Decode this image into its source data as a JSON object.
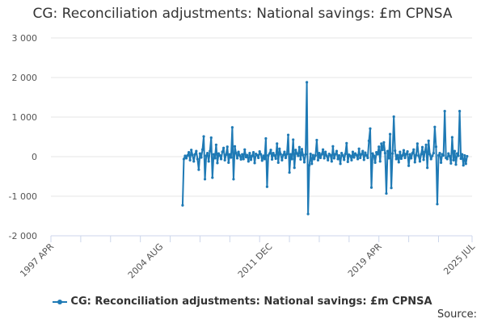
{
  "title": "CG: Reconciliation adjustments: National savings: £m CPNSA",
  "source_label": "Source:",
  "chart_data": {
    "type": "line",
    "title": "CG: Reconciliation adjustments: National savings: £m CPNSA",
    "xlabel": "",
    "ylabel": "",
    "x_tick_labels": [
      "1997 APR",
      "2004 AUG",
      "2011 DEC",
      "2019 APR",
      "2025 JUL"
    ],
    "y_tick_labels": [
      "3 000",
      "2 000",
      "1 000",
      "0",
      "-1 000",
      "-2 000"
    ],
    "y_ticks": [
      3000,
      2000,
      1000,
      0,
      -1000,
      -2000
    ],
    "ylim": [
      -2000,
      3000
    ],
    "xlim": [
      "1997-04",
      "2025-07"
    ],
    "grid": true,
    "legend_position": "bottom",
    "series": [
      {
        "name": "CG: Reconciliation adjustments: National savings: £m CPNSA",
        "color": "#1f7ab5",
        "data": [
          [
            "2006-02",
            -1230
          ],
          [
            "2006-03",
            -60
          ],
          [
            "2006-04",
            20
          ],
          [
            "2006-05",
            -40
          ],
          [
            "2006-06",
            30
          ],
          [
            "2006-07",
            110
          ],
          [
            "2006-08",
            -90
          ],
          [
            "2006-09",
            170
          ],
          [
            "2006-10",
            40
          ],
          [
            "2006-11",
            -120
          ],
          [
            "2006-12",
            60
          ],
          [
            "2007-01",
            140
          ],
          [
            "2007-02",
            -60
          ],
          [
            "2007-03",
            -330
          ],
          [
            "2007-04",
            80
          ],
          [
            "2007-05",
            -20
          ],
          [
            "2007-06",
            180
          ],
          [
            "2007-07",
            510
          ],
          [
            "2007-08",
            -570
          ],
          [
            "2007-09",
            20
          ],
          [
            "2007-10",
            90
          ],
          [
            "2007-11",
            -120
          ],
          [
            "2007-12",
            140
          ],
          [
            "2008-01",
            480
          ],
          [
            "2008-02",
            -530
          ],
          [
            "2008-03",
            60
          ],
          [
            "2008-04",
            -40
          ],
          [
            "2008-05",
            300
          ],
          [
            "2008-06",
            -160
          ],
          [
            "2008-07",
            80
          ],
          [
            "2008-08",
            30
          ],
          [
            "2008-09",
            -60
          ],
          [
            "2008-10",
            120
          ],
          [
            "2008-11",
            220
          ],
          [
            "2008-12",
            -90
          ],
          [
            "2009-01",
            50
          ],
          [
            "2009-02",
            250
          ],
          [
            "2009-03",
            -150
          ],
          [
            "2009-04",
            60
          ],
          [
            "2009-05",
            -20
          ],
          [
            "2009-06",
            740
          ],
          [
            "2009-07",
            -570
          ],
          [
            "2009-08",
            260
          ],
          [
            "2009-09",
            90
          ],
          [
            "2009-10",
            -40
          ],
          [
            "2009-11",
            120
          ],
          [
            "2009-12",
            30
          ],
          [
            "2010-01",
            -70
          ],
          [
            "2010-02",
            60
          ],
          [
            "2010-03",
            -60
          ],
          [
            "2010-04",
            180
          ],
          [
            "2010-05",
            -10
          ],
          [
            "2010-06",
            40
          ],
          [
            "2010-07",
            -120
          ],
          [
            "2010-08",
            90
          ],
          [
            "2010-09",
            -80
          ],
          [
            "2010-10",
            20
          ],
          [
            "2010-11",
            110
          ],
          [
            "2010-12",
            -160
          ],
          [
            "2011-01",
            70
          ],
          [
            "2011-02",
            40
          ],
          [
            "2011-03",
            -30
          ],
          [
            "2011-04",
            130
          ],
          [
            "2011-05",
            60
          ],
          [
            "2011-06",
            -100
          ],
          [
            "2011-07",
            20
          ],
          [
            "2011-08",
            -60
          ],
          [
            "2011-09",
            460
          ],
          [
            "2011-10",
            -760
          ],
          [
            "2011-11",
            30
          ],
          [
            "2011-12",
            80
          ],
          [
            "2012-01",
            170
          ],
          [
            "2012-02",
            -70
          ],
          [
            "2012-03",
            90
          ],
          [
            "2012-04",
            30
          ],
          [
            "2012-05",
            -50
          ],
          [
            "2012-06",
            330
          ],
          [
            "2012-07",
            -150
          ],
          [
            "2012-08",
            200
          ],
          [
            "2012-09",
            60
          ],
          [
            "2012-10",
            -90
          ],
          [
            "2012-11",
            40
          ],
          [
            "2012-12",
            120
          ],
          [
            "2013-01",
            -30
          ],
          [
            "2013-02",
            70
          ],
          [
            "2013-03",
            550
          ],
          [
            "2013-04",
            -400
          ],
          [
            "2013-05",
            60
          ],
          [
            "2013-06",
            -60
          ],
          [
            "2013-07",
            430
          ],
          [
            "2013-08",
            -280
          ],
          [
            "2013-09",
            170
          ],
          [
            "2013-10",
            80
          ],
          [
            "2013-11",
            20
          ],
          [
            "2013-12",
            240
          ],
          [
            "2014-01",
            -70
          ],
          [
            "2014-02",
            190
          ],
          [
            "2014-03",
            40
          ],
          [
            "2014-04",
            -140
          ],
          [
            "2014-05",
            60
          ],
          [
            "2014-06",
            1880
          ],
          [
            "2014-07",
            -1450
          ],
          [
            "2014-08",
            -220
          ],
          [
            "2014-09",
            70
          ],
          [
            "2014-10",
            -180
          ],
          [
            "2014-11",
            40
          ],
          [
            "2014-12",
            -60
          ],
          [
            "2015-01",
            30
          ],
          [
            "2015-02",
            420
          ],
          [
            "2015-03",
            -90
          ],
          [
            "2015-04",
            90
          ],
          [
            "2015-05",
            -30
          ],
          [
            "2015-06",
            60
          ],
          [
            "2015-07",
            180
          ],
          [
            "2015-08",
            -40
          ],
          [
            "2015-09",
            120
          ],
          [
            "2015-10",
            20
          ],
          [
            "2015-11",
            -90
          ],
          [
            "2015-12",
            70
          ],
          [
            "2016-01",
            40
          ],
          [
            "2016-02",
            -120
          ],
          [
            "2016-03",
            260
          ],
          [
            "2016-04",
            -40
          ],
          [
            "2016-05",
            60
          ],
          [
            "2016-06",
            140
          ],
          [
            "2016-07",
            -60
          ],
          [
            "2016-08",
            30
          ],
          [
            "2016-09",
            -180
          ],
          [
            "2016-10",
            90
          ],
          [
            "2016-11",
            30
          ],
          [
            "2016-12",
            -80
          ],
          [
            "2017-01",
            70
          ],
          [
            "2017-02",
            340
          ],
          [
            "2017-03",
            -130
          ],
          [
            "2017-04",
            50
          ],
          [
            "2017-05",
            20
          ],
          [
            "2017-06",
            -90
          ],
          [
            "2017-07",
            120
          ],
          [
            "2017-08",
            -20
          ],
          [
            "2017-09",
            80
          ],
          [
            "2017-10",
            40
          ],
          [
            "2017-11",
            -60
          ],
          [
            "2017-12",
            200
          ],
          [
            "2018-01",
            -30
          ],
          [
            "2018-02",
            60
          ],
          [
            "2018-03",
            140
          ],
          [
            "2018-04",
            -80
          ],
          [
            "2018-05",
            100
          ],
          [
            "2018-06",
            30
          ],
          [
            "2018-07",
            -30
          ],
          [
            "2018-08",
            400
          ],
          [
            "2018-09",
            710
          ],
          [
            "2018-10",
            -780
          ],
          [
            "2018-11",
            80
          ],
          [
            "2018-12",
            20
          ],
          [
            "2019-01",
            -150
          ],
          [
            "2019-02",
            110
          ],
          [
            "2019-03",
            60
          ],
          [
            "2019-04",
            250
          ],
          [
            "2019-05",
            -120
          ],
          [
            "2019-06",
            330
          ],
          [
            "2019-07",
            170
          ],
          [
            "2019-08",
            360
          ],
          [
            "2019-09",
            90
          ],
          [
            "2019-10",
            -930
          ],
          [
            "2019-11",
            140
          ],
          [
            "2019-12",
            -40
          ],
          [
            "2020-01",
            570
          ],
          [
            "2020-02",
            -790
          ],
          [
            "2020-03",
            80
          ],
          [
            "2020-04",
            1010
          ],
          [
            "2020-05",
            150
          ],
          [
            "2020-06",
            -60
          ],
          [
            "2020-07",
            40
          ],
          [
            "2020-08",
            -140
          ],
          [
            "2020-09",
            120
          ],
          [
            "2020-10",
            -50
          ],
          [
            "2020-11",
            30
          ],
          [
            "2020-12",
            160
          ],
          [
            "2021-01",
            -30
          ],
          [
            "2021-02",
            70
          ],
          [
            "2021-03",
            130
          ],
          [
            "2021-04",
            -230
          ],
          [
            "2021-05",
            60
          ],
          [
            "2021-06",
            -40
          ],
          [
            "2021-07",
            90
          ],
          [
            "2021-08",
            180
          ],
          [
            "2021-09",
            -140
          ],
          [
            "2021-10",
            40
          ],
          [
            "2021-11",
            330
          ],
          [
            "2021-12",
            20
          ],
          [
            "2022-01",
            -120
          ],
          [
            "2022-02",
            60
          ],
          [
            "2022-03",
            240
          ],
          [
            "2022-04",
            -80
          ],
          [
            "2022-05",
            120
          ],
          [
            "2022-06",
            300
          ],
          [
            "2022-07",
            -280
          ],
          [
            "2022-08",
            400
          ],
          [
            "2022-09",
            60
          ],
          [
            "2022-10",
            -60
          ],
          [
            "2022-11",
            20
          ],
          [
            "2022-12",
            90
          ],
          [
            "2023-01",
            750
          ],
          [
            "2023-02",
            250
          ],
          [
            "2023-03",
            -1200
          ],
          [
            "2023-04",
            30
          ],
          [
            "2023-05",
            90
          ],
          [
            "2023-06",
            -150
          ],
          [
            "2023-07",
            60
          ],
          [
            "2023-08",
            30
          ],
          [
            "2023-09",
            1150
          ],
          [
            "2023-10",
            -30
          ],
          [
            "2023-11",
            -60
          ],
          [
            "2023-12",
            80
          ],
          [
            "2024-01",
            10
          ],
          [
            "2024-02",
            -170
          ],
          [
            "2024-03",
            490
          ],
          [
            "2024-04",
            -90
          ],
          [
            "2024-05",
            140
          ],
          [
            "2024-06",
            -200
          ],
          [
            "2024-07",
            80
          ],
          [
            "2024-08",
            20
          ],
          [
            "2024-09",
            1150
          ],
          [
            "2024-10",
            -50
          ],
          [
            "2024-11",
            60
          ],
          [
            "2024-12",
            -220
          ],
          [
            "2025-01",
            30
          ],
          [
            "2025-02",
            -180
          ],
          [
            "2025-03",
            10
          ]
        ]
      }
    ]
  }
}
